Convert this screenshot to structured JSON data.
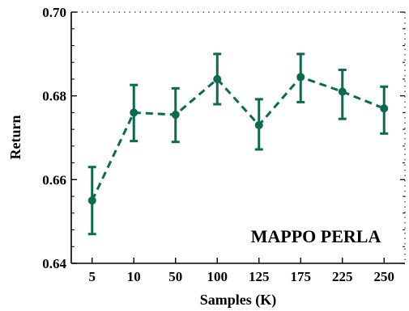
{
  "chart_data": {
    "type": "line",
    "categories": [
      "5",
      "10",
      "50",
      "100",
      "125",
      "175",
      "225",
      "250"
    ],
    "series": [
      {
        "values": [
          0.655,
          0.676,
          0.6755,
          0.684,
          0.673,
          0.6845,
          0.681,
          0.677
        ],
        "error_low": [
          0.647,
          0.6692,
          0.669,
          0.678,
          0.6672,
          0.6785,
          0.6745,
          0.671
        ],
        "error_high": [
          0.663,
          0.6826,
          0.6818,
          0.69,
          0.6792,
          0.69,
          0.6862,
          0.6822
        ]
      }
    ],
    "xlabel": "Samples (K)",
    "ylabel": "Return",
    "ylim": [
      0.64,
      0.7
    ],
    "yticks": [
      "0.64",
      "0.66",
      "0.68",
      "0.70"
    ],
    "annotation": "MAPPO PERLA",
    "color": "#0b6a4f",
    "line_style": "dashed",
    "grid": false
  }
}
